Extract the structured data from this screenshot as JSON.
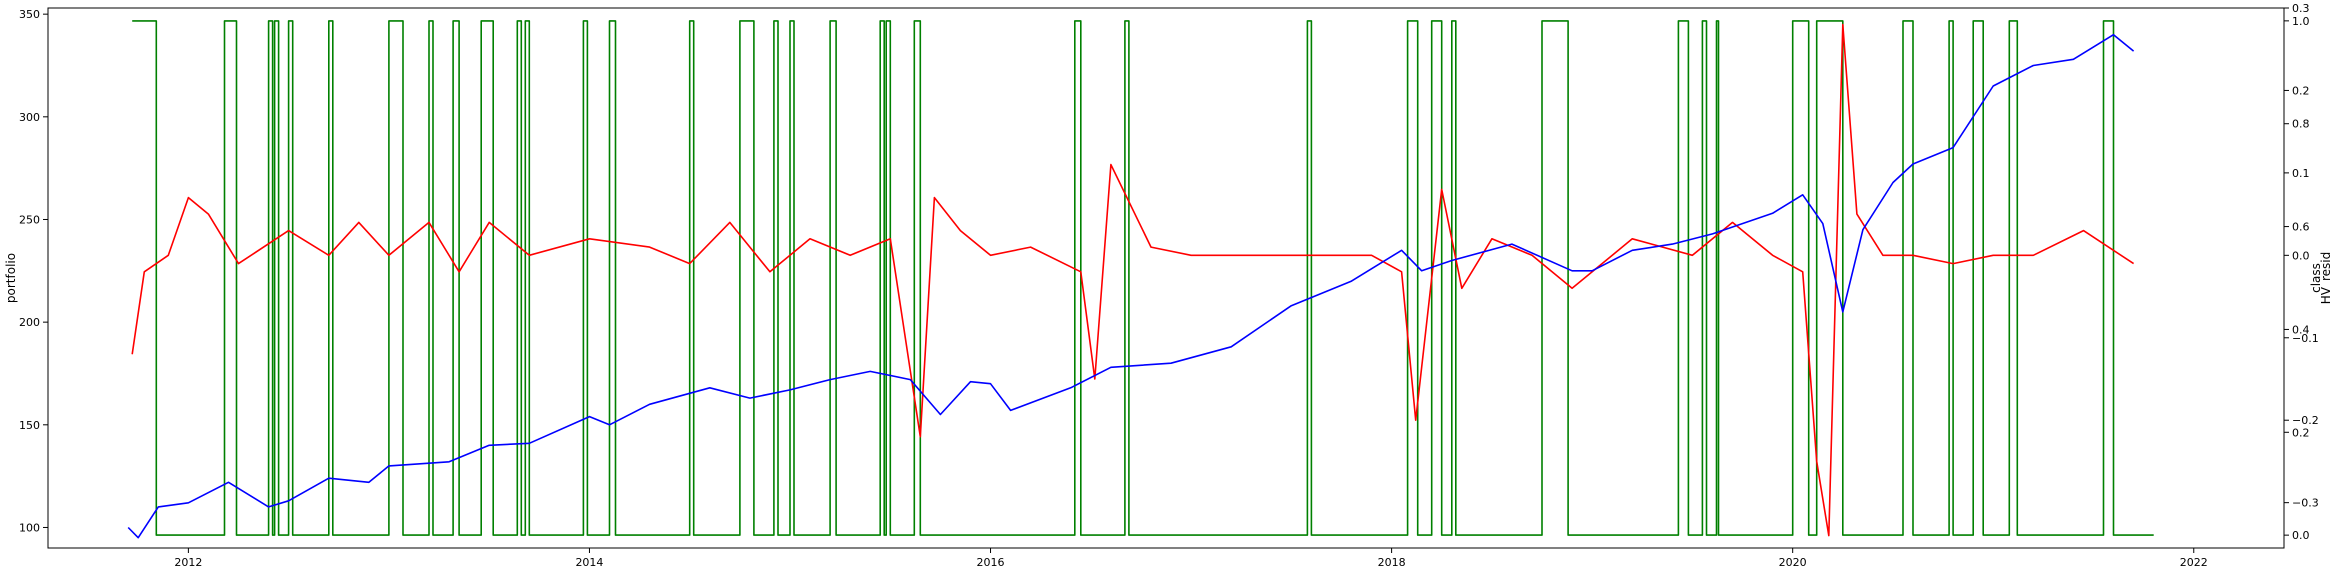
{
  "chart_data": {
    "type": "line",
    "x_ticks": [
      "2012",
      "2014",
      "2016",
      "2018",
      "2020",
      "2022"
    ],
    "xlim": [
      2011.3,
      2022.45
    ],
    "left_axis": {
      "label": "portfolio",
      "ylim": [
        90,
        353
      ],
      "ticks": [
        100,
        150,
        200,
        250,
        300,
        350
      ]
    },
    "right_axis_class": {
      "label": "class",
      "ylim": [
        -0.025,
        1.025
      ],
      "ticks": [
        "0.0",
        "0.2",
        "0.4",
        "0.6",
        "0.8",
        "1.0"
      ]
    },
    "right_axis_resid": {
      "label": "HV_resid",
      "ylim": [
        -0.355,
        0.3
      ],
      "ticks": [
        "-0.3",
        "-0.2",
        "-0.1",
        "0.0",
        "0.1",
        "0.2",
        "0.3"
      ]
    },
    "series": [
      {
        "axis": "left",
        "color": "#0000ff",
        "x": [
          2011.7,
          2011.75,
          2011.85,
          2012.0,
          2012.2,
          2012.4,
          2012.5,
          2012.7,
          2012.9,
          2013.0,
          2013.3,
          2013.5,
          2013.7,
          2014.0,
          2014.1,
          2014.3,
          2014.6,
          2014.8,
          2015.0,
          2015.2,
          2015.4,
          2015.6,
          2015.75,
          2015.9,
          2016.0,
          2016.1,
          2016.4,
          2016.6,
          2016.9,
          2017.2,
          2017.5,
          2017.8,
          2018.05,
          2018.15,
          2018.3,
          2018.6,
          2018.9,
          2019.0,
          2019.2,
          2019.4,
          2019.6,
          2019.9,
          2020.05,
          2020.15,
          2020.25,
          2020.35,
          2020.5,
          2020.6,
          2020.8,
          2021.0,
          2021.2,
          2021.4,
          2021.6,
          2021.7
        ],
        "y": [
          100,
          95,
          110,
          112,
          122,
          110,
          113,
          124,
          122,
          130,
          132,
          140,
          141,
          154,
          150,
          160,
          168,
          163,
          167,
          172,
          176,
          172,
          155,
          171,
          170,
          157,
          168,
          178,
          180,
          188,
          208,
          220,
          235,
          225,
          230,
          238,
          225,
          225,
          235,
          238,
          243,
          253,
          262,
          248,
          205,
          245,
          268,
          277,
          285,
          315,
          325,
          328,
          340,
          332
        ]
      },
      {
        "axis": "resid",
        "color": "#ff0000",
        "x": [
          2011.72,
          2011.78,
          2011.9,
          2012.0,
          2012.1,
          2012.25,
          2012.5,
          2012.7,
          2012.85,
          2013.0,
          2013.2,
          2013.35,
          2013.5,
          2013.7,
          2014.0,
          2014.3,
          2014.5,
          2014.7,
          2014.9,
          2015.1,
          2015.3,
          2015.5,
          2015.65,
          2015.72,
          2015.85,
          2016.0,
          2016.2,
          2016.45,
          2016.52,
          2016.6,
          2016.8,
          2017.0,
          2017.3,
          2017.6,
          2017.9,
          2018.05,
          2018.12,
          2018.25,
          2018.35,
          2018.5,
          2018.7,
          2018.9,
          2019.2,
          2019.5,
          2019.7,
          2019.9,
          2020.05,
          2020.12,
          2020.18,
          2020.25,
          2020.32,
          2020.45,
          2020.6,
          2020.8,
          2021.0,
          2021.2,
          2021.45,
          2021.7
        ],
        "y": [
          -0.12,
          -0.02,
          0.0,
          0.07,
          0.05,
          -0.01,
          0.03,
          0.0,
          0.04,
          0.0,
          0.04,
          -0.02,
          0.04,
          0.0,
          0.02,
          0.01,
          -0.01,
          0.04,
          -0.02,
          0.02,
          0.0,
          0.02,
          -0.22,
          0.07,
          0.03,
          0.0,
          0.01,
          -0.02,
          -0.15,
          0.11,
          0.01,
          0.0,
          0.0,
          0.0,
          0.0,
          -0.02,
          -0.2,
          0.08,
          -0.04,
          0.02,
          0.0,
          -0.04,
          0.02,
          0.0,
          0.04,
          0.0,
          -0.02,
          -0.25,
          -0.34,
          0.28,
          0.05,
          0.0,
          0.0,
          -0.01,
          0.0,
          0.0,
          0.03,
          -0.01
        ]
      },
      {
        "axis": "class",
        "color": "#008000",
        "x": [
          2011.72,
          2011.84,
          2012.18,
          2012.24,
          2012.4,
          2012.42,
          2012.43,
          2012.45,
          2012.5,
          2012.52,
          2012.7,
          2012.72,
          2013.0,
          2013.07,
          2013.2,
          2013.22,
          2013.32,
          2013.35,
          2013.46,
          2013.52,
          2013.64,
          2013.66,
          2013.68,
          2013.7,
          2013.97,
          2013.99,
          2014.1,
          2014.13,
          2014.5,
          2014.52,
          2014.75,
          2014.82,
          2014.92,
          2014.94,
          2015.0,
          2015.02,
          2015.2,
          2015.23,
          2015.45,
          2015.47,
          2015.48,
          2015.5,
          2015.62,
          2015.65,
          2016.42,
          2016.45,
          2016.67,
          2016.69,
          2017.58,
          2017.6,
          2018.08,
          2018.13,
          2018.2,
          2018.25,
          2018.3,
          2018.32,
          2018.75,
          2018.88,
          2019.43,
          2019.48,
          2019.55,
          2019.57,
          2019.62,
          2019.63,
          2020.0,
          2020.08,
          2020.12,
          2020.25,
          2020.55,
          2020.6,
          2020.78,
          2020.8,
          2020.9,
          2020.95,
          2021.08,
          2021.12,
          2021.55,
          2021.6
        ],
        "y": [
          1,
          0,
          1,
          0,
          1,
          0,
          1,
          0,
          1,
          0,
          1,
          0,
          1,
          0,
          1,
          0,
          1,
          0,
          1,
          0,
          1,
          0,
          1,
          0,
          1,
          0,
          1,
          0,
          1,
          0,
          1,
          0,
          1,
          0,
          1,
          0,
          1,
          0,
          1,
          0,
          1,
          0,
          1,
          0,
          1,
          0,
          1,
          0,
          1,
          0,
          1,
          0,
          1,
          0,
          1,
          0,
          1,
          0,
          1,
          0,
          1,
          0,
          1,
          0,
          1,
          0,
          1,
          0,
          1,
          0,
          1,
          0,
          1,
          0,
          1,
          0,
          1,
          0
        ]
      }
    ],
    "x_end": 2021.8
  }
}
